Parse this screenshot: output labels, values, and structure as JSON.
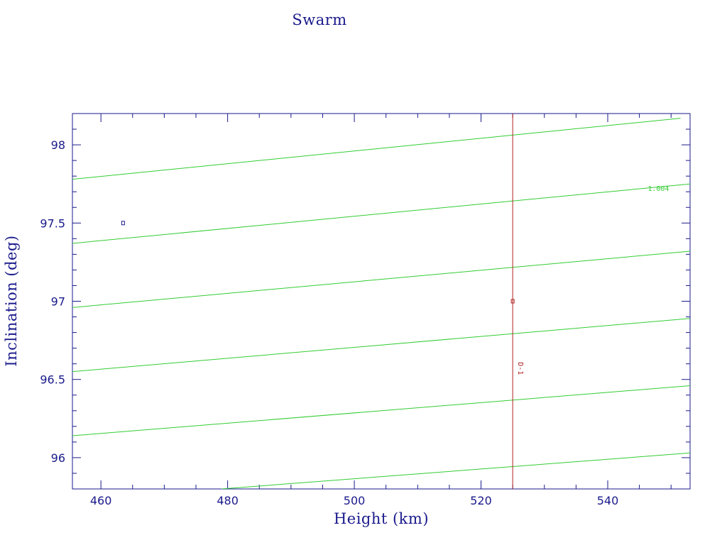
{
  "chart_data": {
    "type": "line",
    "title": "Swarm",
    "xlabel": "Height (km)",
    "ylabel": "Inclination (deg)",
    "xlim": [
      455.5,
      553
    ],
    "ylim": [
      95.8,
      98.2
    ],
    "x_ticks": [
      460,
      480,
      500,
      520,
      540
    ],
    "y_ticks": [
      96,
      96.5,
      97,
      97.5,
      98
    ],
    "grid": false,
    "series": [
      {
        "color": "#33cc33",
        "points": [
          [
            455.5,
            97.78
          ],
          [
            551.5,
            98.17
          ]
        ]
      },
      {
        "color": "#33cc33",
        "points": [
          [
            455.5,
            97.37
          ],
          [
            553,
            97.75
          ]
        ]
      },
      {
        "color": "#33cc33",
        "points": [
          [
            455.5,
            96.96
          ],
          [
            553,
            97.32
          ]
        ]
      },
      {
        "color": "#33cc33",
        "points": [
          [
            455.5,
            96.55
          ],
          [
            553,
            96.89
          ]
        ]
      },
      {
        "color": "#33cc33",
        "points": [
          [
            455.5,
            96.14
          ],
          [
            553,
            96.46
          ]
        ]
      },
      {
        "color": "#33cc33",
        "points": [
          [
            479,
            95.8
          ],
          [
            553,
            96.03
          ]
        ]
      },
      {
        "color": "#b22222",
        "points": [
          [
            525,
            95.8
          ],
          [
            525,
            98.2
          ]
        ]
      }
    ],
    "markers": [
      {
        "x": 463.5,
        "y": 97.5,
        "color": "#1a1a8c",
        "shape": "square"
      },
      {
        "x": 525,
        "y": 97.0,
        "color": "#b22222",
        "shape": "square"
      }
    ],
    "annotations": [
      {
        "text": "1.004",
        "x": 548,
        "y": 97.72,
        "color": "#33cc33",
        "rotate": 0
      },
      {
        "text": "D-1",
        "x": 526.2,
        "y": 96.57,
        "color": "#b22222",
        "rotate": 90
      }
    ],
    "axis_color": "#1a1a8c"
  }
}
